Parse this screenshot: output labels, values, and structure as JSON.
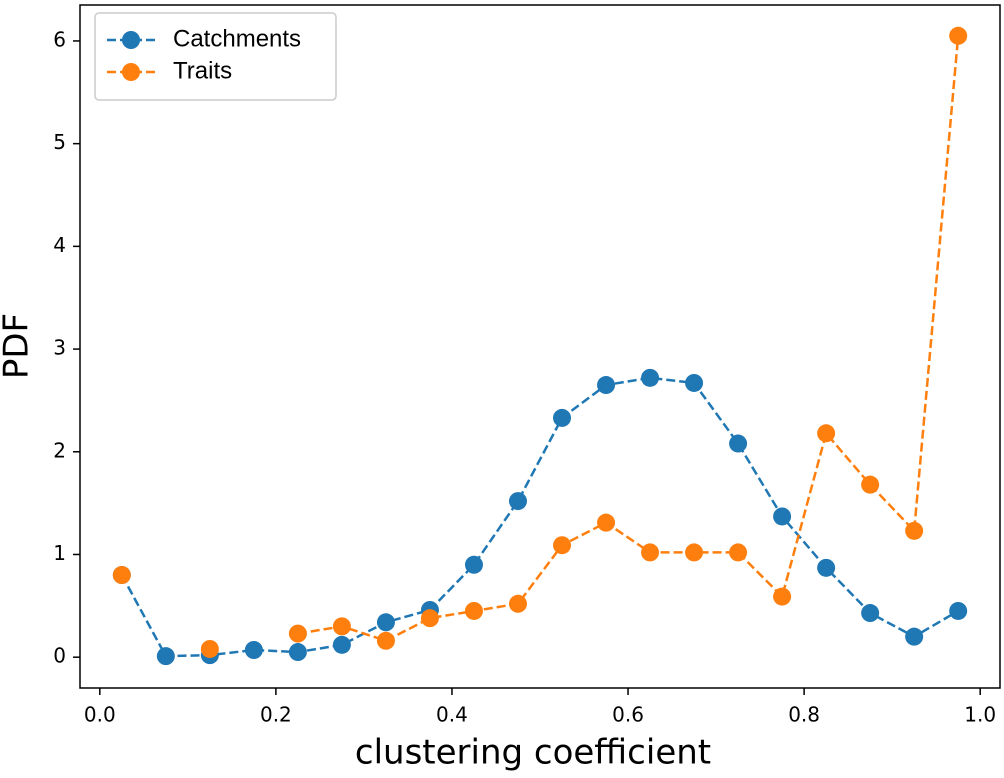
{
  "chart_data": {
    "type": "line",
    "x_label": "clustering coefficient",
    "y_label": "PDF",
    "x": [
      0.025,
      0.075,
      0.125,
      0.175,
      0.225,
      0.275,
      0.325,
      0.375,
      0.425,
      0.475,
      0.525,
      0.575,
      0.625,
      0.675,
      0.725,
      0.775,
      0.825,
      0.875,
      0.925,
      0.975
    ],
    "series": [
      {
        "name": "Catchments",
        "color": "#1f77b4",
        "values": [
          0.8,
          0.01,
          0.02,
          0.07,
          0.05,
          0.12,
          0.34,
          0.46,
          0.9,
          1.52,
          2.33,
          2.65,
          2.72,
          2.67,
          2.08,
          1.37,
          0.87,
          0.43,
          0.2,
          0.45
        ]
      },
      {
        "name": "Traits",
        "color": "#ff7f0e",
        "values": [
          0.8,
          null,
          0.08,
          null,
          0.23,
          0.3,
          0.16,
          0.38,
          0.45,
          0.52,
          1.09,
          1.31,
          1.02,
          1.02,
          1.02,
          0.59,
          2.18,
          1.68,
          1.23,
          6.05
        ]
      }
    ],
    "xlim": [
      -0.0225,
      1.0225
    ],
    "ylim": [
      -0.3,
      6.35
    ],
    "xticks": [
      {
        "value": 0,
        "label": "0.0"
      },
      0.2,
      0.4,
      0.6,
      0.8,
      {
        "value": 1,
        "label": "1.0"
      }
    ],
    "yticks": [
      0,
      1,
      2,
      3,
      4,
      5,
      6
    ],
    "legend": "upper left",
    "grid": false
  }
}
